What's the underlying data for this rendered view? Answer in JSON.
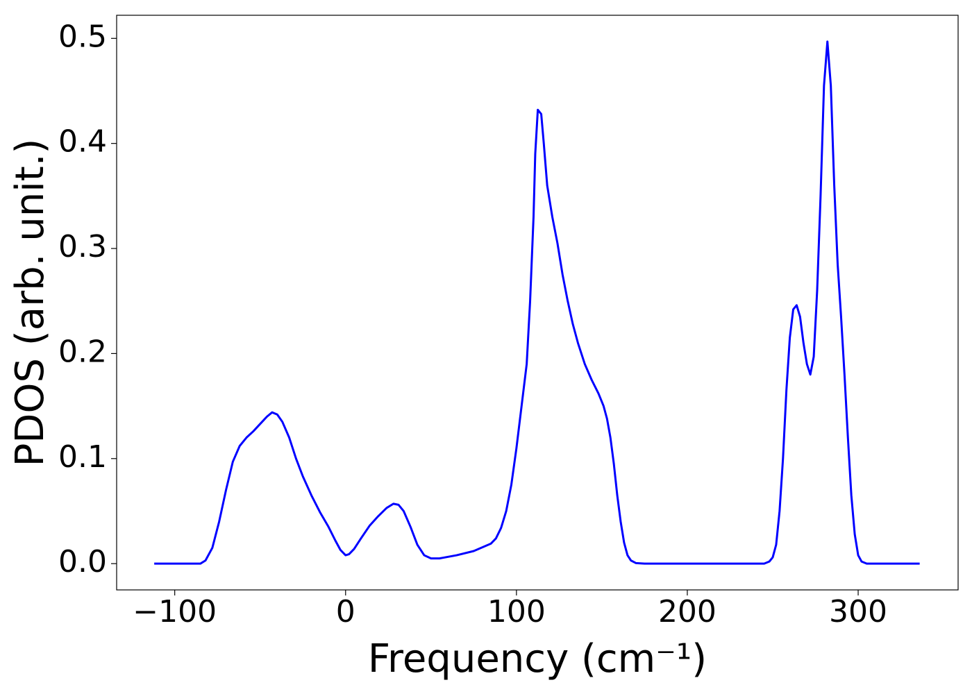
{
  "chart_data": {
    "type": "line",
    "xlabel": "Frequency (cm⁻¹)",
    "ylabel": "PDOS (arb. unit.)",
    "xlim": [
      -134,
      358.5
    ],
    "ylim": [
      -0.025,
      0.522
    ],
    "xticks": [
      {
        "value": -100,
        "label": "−100"
      },
      0,
      100,
      200,
      300
    ],
    "yticks": [
      {
        "value": 0,
        "label": "0.0"
      },
      0.1,
      0.2,
      0.3,
      0.4,
      0.5
    ],
    "grid": false,
    "series": [
      {
        "name": "PDOS",
        "color": "#0000ff",
        "x": [
          -112,
          -85,
          -82,
          -78,
          -74,
          -70,
          -66,
          -62,
          -58,
          -54,
          -50,
          -46,
          -43,
          -40,
          -37,
          -33,
          -29,
          -25,
          -20,
          -15,
          -10,
          -6,
          -3,
          0,
          2,
          5,
          9,
          14,
          19,
          24,
          28,
          31,
          34,
          38,
          42,
          46,
          50,
          55,
          65,
          75,
          85,
          88,
          91,
          94,
          97,
          100,
          103,
          106,
          108,
          110,
          111,
          112.5,
          114.5,
          116,
          118,
          121,
          124,
          127,
          130,
          133,
          136,
          140,
          144,
          148,
          151,
          153,
          155,
          157,
          159,
          161,
          163,
          165,
          167,
          170,
          175,
          245,
          248,
          250,
          252,
          254,
          256,
          258,
          260,
          262,
          264,
          266,
          268,
          270,
          272,
          274,
          276,
          278,
          280,
          282,
          284,
          286,
          288,
          290,
          292,
          294,
          296,
          298,
          300,
          302,
          305,
          336
        ],
        "values": [
          0,
          0,
          0.003,
          0.015,
          0.04,
          0.07,
          0.097,
          0.112,
          0.12,
          0.126,
          0.133,
          0.14,
          0.144,
          0.142,
          0.135,
          0.12,
          0.1,
          0.083,
          0.065,
          0.049,
          0.035,
          0.022,
          0.013,
          0.008,
          0.009,
          0.014,
          0.024,
          0.036,
          0.045,
          0.053,
          0.057,
          0.056,
          0.05,
          0.035,
          0.018,
          0.008,
          0.005,
          0.005,
          0.008,
          0.012,
          0.019,
          0.024,
          0.034,
          0.05,
          0.075,
          0.11,
          0.15,
          0.19,
          0.25,
          0.33,
          0.39,
          0.432,
          0.428,
          0.4,
          0.36,
          0.33,
          0.305,
          0.275,
          0.25,
          0.228,
          0.21,
          0.19,
          0.175,
          0.162,
          0.15,
          0.138,
          0.12,
          0.095,
          0.065,
          0.04,
          0.02,
          0.008,
          0.003,
          0.0005,
          0,
          0,
          0.002,
          0.006,
          0.018,
          0.05,
          0.1,
          0.165,
          0.215,
          0.242,
          0.246,
          0.235,
          0.21,
          0.19,
          0.18,
          0.197,
          0.26,
          0.35,
          0.455,
          0.497,
          0.455,
          0.36,
          0.285,
          0.235,
          0.18,
          0.12,
          0.065,
          0.028,
          0.008,
          0.002,
          0,
          0
        ]
      }
    ]
  }
}
